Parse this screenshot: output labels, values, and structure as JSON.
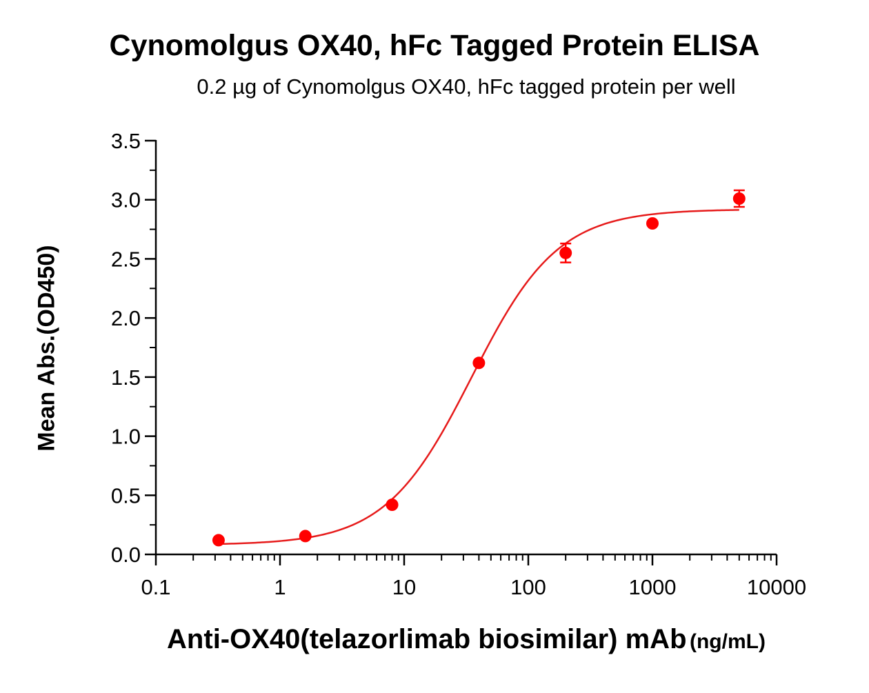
{
  "chart_data": {
    "type": "scatter",
    "title": "Cynomolgus OX40, hFc Tagged Protein ELISA",
    "subtitle": "0.2 µg of Cynomolgus OX40, hFc tagged protein per well",
    "xlabel": "Anti-OX40(telazorlimab biosimilar) mAb",
    "xlabel_unit": "(ng/mL)",
    "ylabel": "Mean Abs.(OD450)",
    "xscale": "log",
    "xlim": [
      0.1,
      10000
    ],
    "ylim": [
      0,
      3.5
    ],
    "x_ticks": [
      "0.1",
      "1",
      "10",
      "100",
      "1000",
      "10000"
    ],
    "y_ticks": [
      "0.0",
      "0.5",
      "1.0",
      "1.5",
      "2.0",
      "2.5",
      "3.0",
      "3.5"
    ],
    "grid": false,
    "series": [
      {
        "x": [
          0.32,
          1.6,
          8,
          40,
          200,
          1000,
          5000
        ],
        "y": [
          0.12,
          0.155,
          0.42,
          1.62,
          2.55,
          2.8,
          3.01
        ],
        "error": [
          0.01,
          0.01,
          0.02,
          0.02,
          0.08,
          0.02,
          0.07
        ],
        "color": "#ff0000"
      }
    ],
    "fit_curve": {
      "model": "4PL",
      "bottom": 0.08,
      "top": 2.92,
      "ec50": 35,
      "hill": 1.25,
      "color": "#e61a1a"
    }
  }
}
